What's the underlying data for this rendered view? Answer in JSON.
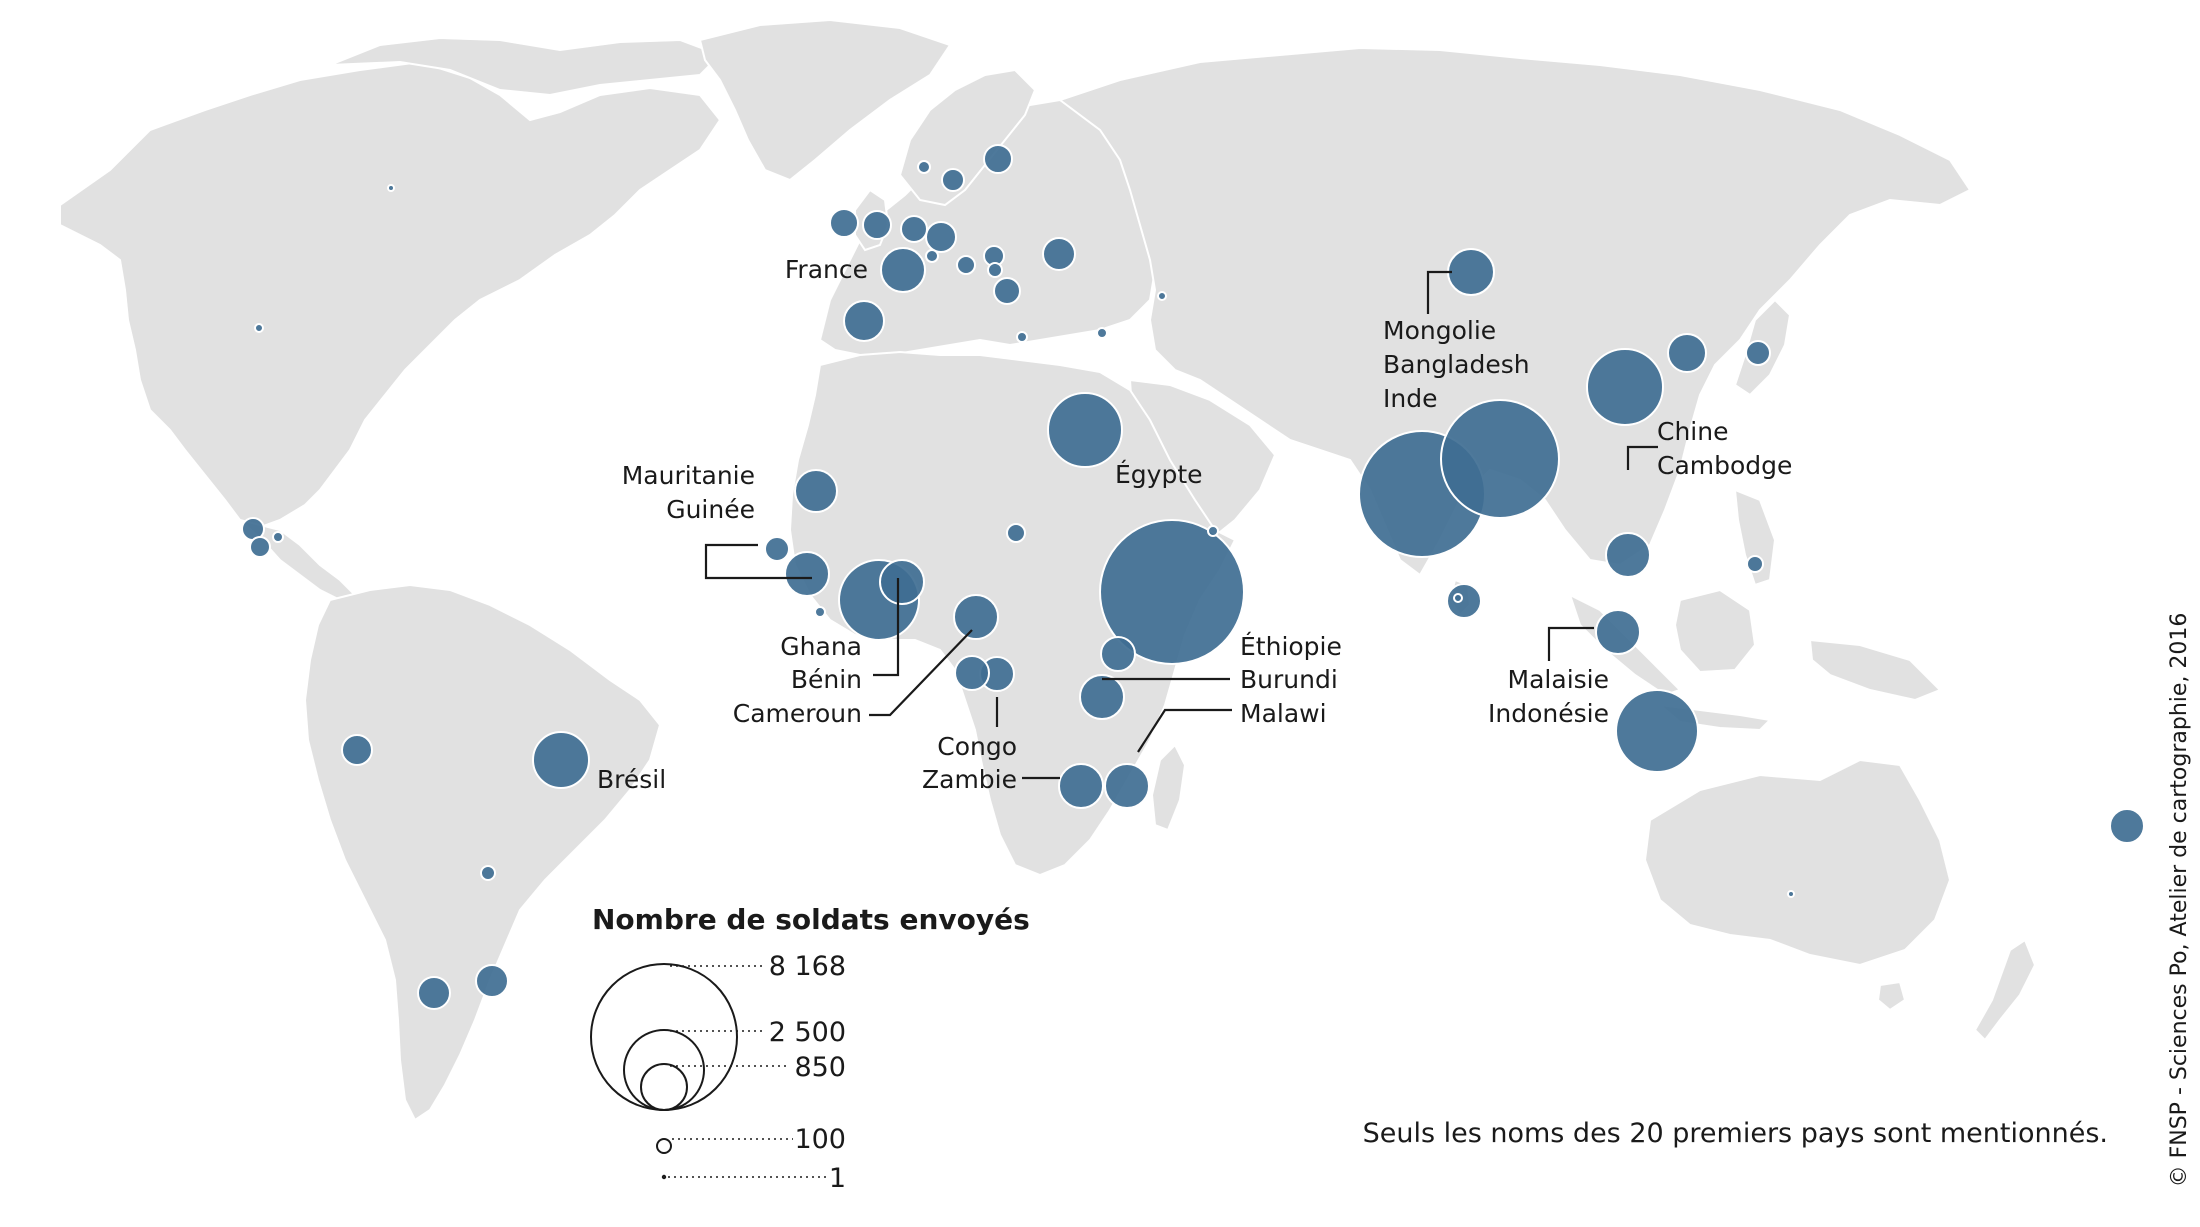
{
  "map": {
    "colors": {
      "land": "#e1e1e1",
      "bubble": "#3f6e92",
      "text": "#1a1a1a",
      "background": "#ffffff"
    },
    "labels": {
      "france": "France",
      "mongolie": "Mongolie",
      "bangladesh": "Bangladesh",
      "inde": "Inde",
      "chine": "Chine",
      "cambodge": "Cambodge",
      "mauritanie": "Mauritanie",
      "guinee": "Guinée",
      "egypte": "Égypte",
      "ghana": "Ghana",
      "benin": "Bénin",
      "cameroun": "Cameroun",
      "ethiopie": "Éthiopie",
      "burundi": "Burundi",
      "malawi": "Malawi",
      "malaisie": "Malaisie",
      "indonesie": "Indonésie",
      "congo": "Congo",
      "zambie": "Zambie",
      "bresil": "Brésil"
    }
  },
  "legend": {
    "title": "Nombre de soldats envoyés",
    "values": [
      "8 168",
      "2 500",
      "850",
      "100",
      "1"
    ]
  },
  "note": "Seuls les noms des 20 premiers pays sont mentionnés.",
  "credit": "© FNSP - Sciences Po, Atelier de cartographie, 2016"
}
